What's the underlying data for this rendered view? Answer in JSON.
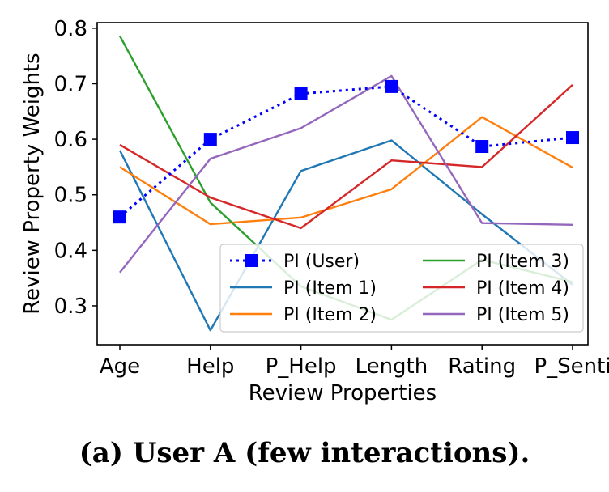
{
  "chart_data": {
    "type": "line",
    "categories": [
      "Age",
      "Help",
      "P_Help",
      "Length",
      "Rating",
      "P_Senti"
    ],
    "xlabel": "Review Properties",
    "ylabel": "Review Property Weights",
    "ylim": [
      0.23,
      0.81
    ],
    "yticks": [
      0.3,
      0.4,
      0.5,
      0.6,
      0.7,
      0.8
    ],
    "ytick_labels": [
      "0.3",
      "0.4",
      "0.5",
      "0.6",
      "0.7",
      "0.8"
    ],
    "grid": false,
    "legend_position": "lower-right",
    "series": [
      {
        "name": "PI (User)",
        "values": [
          0.46,
          0.6,
          0.682,
          0.695,
          0.587,
          0.603
        ],
        "color": "#0000ff",
        "style": "dotted",
        "marker": "square"
      },
      {
        "name": "PI (Item 1)",
        "values": [
          0.58,
          0.256,
          0.543,
          0.598,
          0.465,
          0.338
        ],
        "color": "#1f77b4",
        "style": "solid"
      },
      {
        "name": "PI (Item 2)",
        "values": [
          0.55,
          0.447,
          0.459,
          0.51,
          0.64,
          0.549
        ],
        "color": "#ff7f0e",
        "style": "solid"
      },
      {
        "name": "PI (Item 3)",
        "values": [
          0.786,
          0.486,
          0.335,
          0.275,
          0.383,
          0.343
        ],
        "color": "#2ca02c",
        "style": "solid"
      },
      {
        "name": "PI (Item 4)",
        "values": [
          0.59,
          0.495,
          0.44,
          0.562,
          0.55,
          0.698
        ],
        "color": "#d62728",
        "style": "solid"
      },
      {
        "name": "PI (Item 5)",
        "values": [
          0.36,
          0.565,
          0.62,
          0.714,
          0.449,
          0.446
        ],
        "color": "#9467bd",
        "style": "solid"
      }
    ]
  },
  "caption": "(a) User A (few interactions)."
}
